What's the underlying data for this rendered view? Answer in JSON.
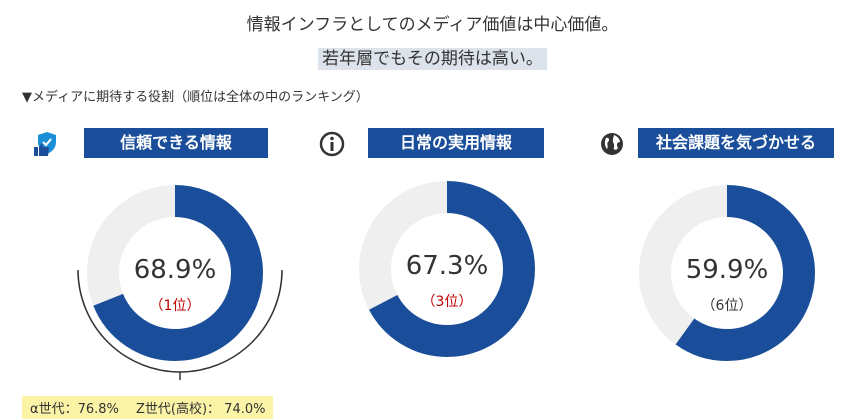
{
  "headline": {
    "line1": "情報インフラとしてのメディア価値は中心価値。",
    "line2": "若年層でもその期待は高い。"
  },
  "subtitle": "▼メディアに期待する役割（順位は全体の中のランキング）",
  "colors": {
    "accent": "#1a4e9a",
    "track": "#efefef",
    "rank_highlight": "#c00000",
    "rank_normal": "#333333",
    "note_bg": "#fbf3a6"
  },
  "chart_data": [
    {
      "type": "pie",
      "variant": "donut",
      "label": "信頼できる情報",
      "icon": "thumbs-up-shield-icon",
      "value": 68.9,
      "value_text": "68.9%",
      "rank_text": "（1位）",
      "rank_highlight": true
    },
    {
      "type": "pie",
      "variant": "donut",
      "label": "日常の実用情報",
      "icon": "info-circle-icon",
      "value": 67.3,
      "value_text": "67.3%",
      "rank_text": "（3位）",
      "rank_highlight": true
    },
    {
      "type": "pie",
      "variant": "donut",
      "label": "社会課題を気づかせる",
      "icon": "globe-icon",
      "value": 59.9,
      "value_text": "59.9%",
      "rank_text": "（6位）",
      "rank_highlight": false
    }
  ],
  "note": "α世代：76.8%　 Z世代(高校)： 74.0%"
}
